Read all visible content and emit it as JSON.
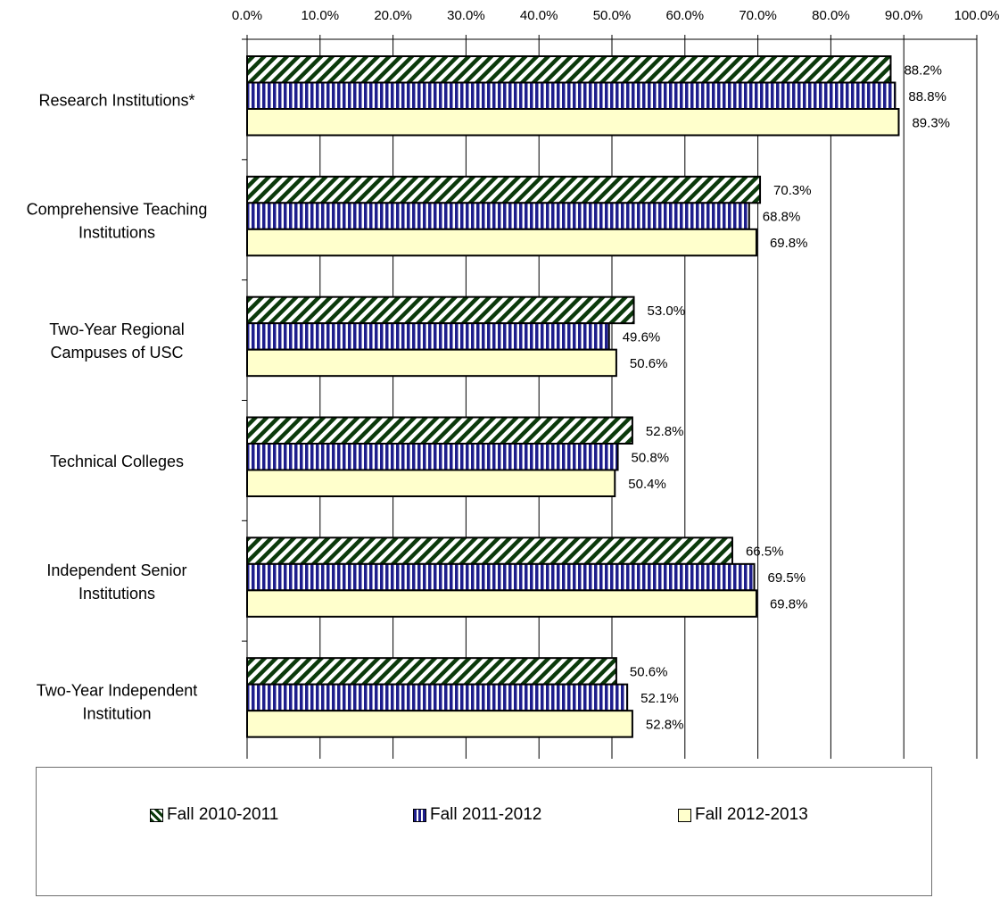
{
  "chart_data": {
    "type": "bar",
    "orientation": "horizontal",
    "categories": [
      "Research Institutions*",
      "Comprehensive Teaching Institutions",
      "Two-Year Regional Campuses of USC",
      "Technical Colleges",
      "Independent Senior Institutions",
      "Two-Year Independent Institution"
    ],
    "category_lines": [
      [
        "Research Institutions*"
      ],
      [
        "Comprehensive Teaching",
        "Institutions"
      ],
      [
        "Two-Year Regional",
        "Campuses of USC"
      ],
      [
        "Technical Colleges"
      ],
      [
        "Independent Senior",
        "Institutions"
      ],
      [
        "Two-Year Independent",
        "Institution"
      ]
    ],
    "series": [
      {
        "name": "Fall 2010-2011",
        "values": [
          88.2,
          70.3,
          53.0,
          52.8,
          66.5,
          50.6
        ],
        "data_labels": [
          "88.2%",
          "70.3%",
          "53.0%",
          "52.8%",
          "66.5%",
          "50.6%"
        ]
      },
      {
        "name": "Fall 2011-2012",
        "values": [
          88.8,
          68.8,
          49.6,
          50.8,
          69.5,
          52.1
        ],
        "data_labels": [
          "88.8%",
          "68.8%",
          "49.6%",
          "50.8%",
          "69.5%",
          "52.1%"
        ]
      },
      {
        "name": "Fall 2012-2013",
        "values": [
          89.3,
          69.8,
          50.6,
          50.4,
          69.8,
          52.8
        ],
        "data_labels": [
          "89.3%",
          "69.8%",
          "50.6%",
          "50.4%",
          "69.8%",
          "52.8%"
        ]
      }
    ],
    "x_ticks": [
      "0.0%",
      "10.0%",
      "20.0%",
      "30.0%",
      "40.0%",
      "50.0%",
      "60.0%",
      "70.0%",
      "80.0%",
      "90.0%",
      "100.0%"
    ],
    "xlim": [
      0,
      100
    ],
    "x_axis_position": "top",
    "grid": "vertical",
    "legend_position": "bottom",
    "colors": {
      "series_1_pattern": "#0b3a0b",
      "series_2_pattern": "#1e1e8c",
      "series_3_fill": "#ffffcc"
    }
  },
  "legend": {
    "items": [
      {
        "label": "Fall 2010-2011",
        "icon": "diagonal-hatch-swatch"
      },
      {
        "label": "Fall 2011-2012",
        "icon": "vertical-stripe-swatch"
      },
      {
        "label": "Fall 2012-2013",
        "icon": "plain-cream-swatch"
      }
    ]
  }
}
